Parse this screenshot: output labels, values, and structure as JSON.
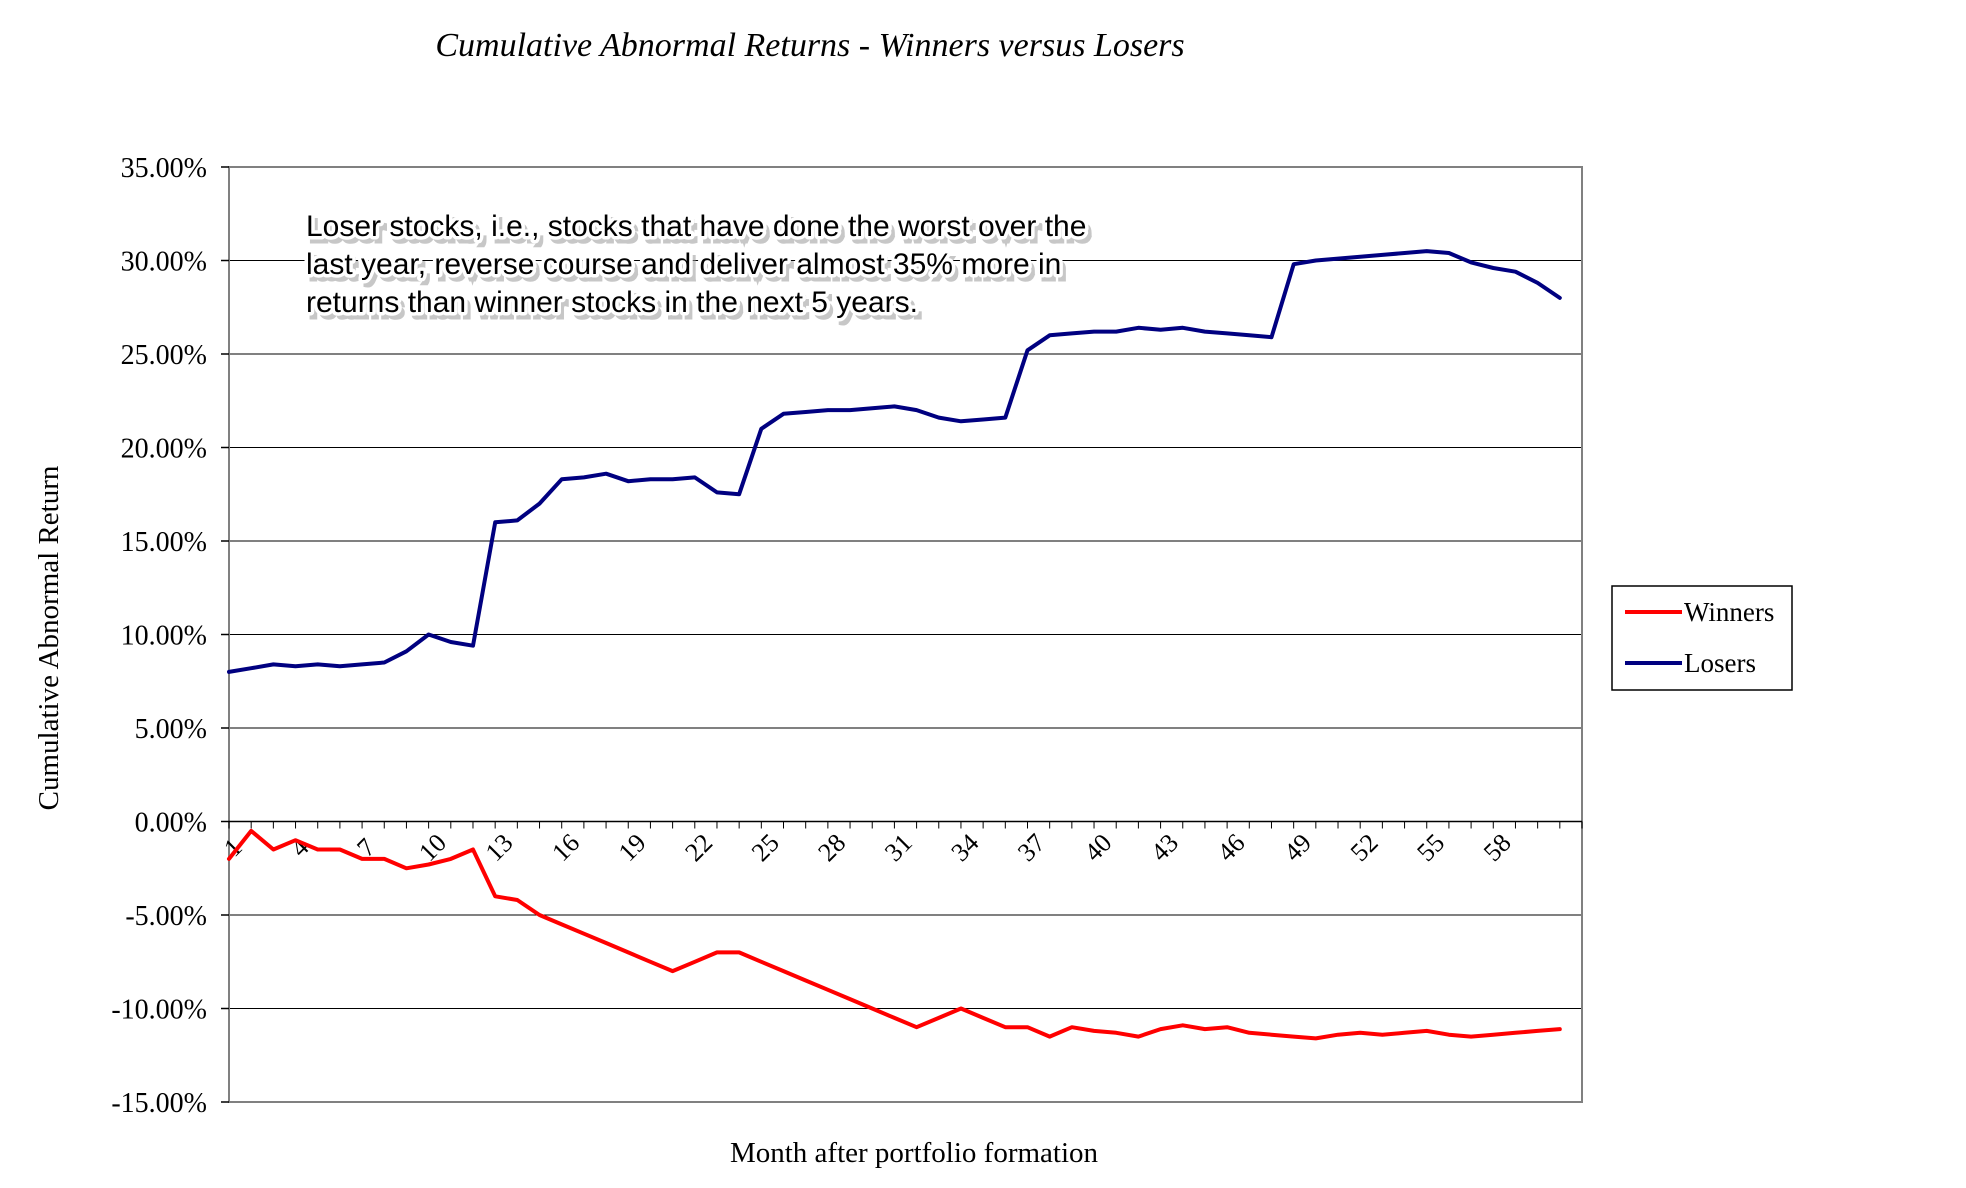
{
  "chart_data": {
    "type": "line",
    "title": "Cumulative Abnormal Returns - Winners versus Losers",
    "xlabel": "Month after portfolio formation",
    "ylabel": "Cumulative Abnormal Return",
    "ylim": [
      -15,
      35
    ],
    "yticks": [
      "35.00%",
      "30.00%",
      "25.00%",
      "20.00%",
      "15.00%",
      "10.00%",
      "5.00%",
      "0.00%",
      "-5.00%",
      "-10.00%",
      "-15.00%"
    ],
    "xticks": [
      "1",
      "4",
      "7",
      "10",
      "13",
      "16",
      "19",
      "22",
      "25",
      "28",
      "31",
      "34",
      "37",
      "40",
      "43",
      "46",
      "49",
      "52",
      "55",
      "58"
    ],
    "grid": "horizontal",
    "legend_position": "right",
    "annotation": [
      "Loser stocks, i.e., stocks that have done the worst over the",
      "last year, reverse course and deliver almost 35% more in",
      "returns than winner stocks in the next 5 years."
    ],
    "x": [
      1,
      2,
      3,
      4,
      5,
      6,
      7,
      8,
      9,
      10,
      11,
      12,
      13,
      14,
      15,
      16,
      17,
      18,
      19,
      20,
      21,
      22,
      23,
      24,
      25,
      26,
      27,
      28,
      29,
      30,
      31,
      32,
      33,
      34,
      35,
      36,
      37,
      38,
      39,
      40,
      41,
      42,
      43,
      44,
      45,
      46,
      47,
      48,
      49,
      50,
      51,
      52,
      53,
      54,
      55,
      56,
      57,
      58,
      59,
      60,
      61
    ],
    "series": [
      {
        "name": "Winners",
        "color": "#ff0000",
        "values": [
          -2.0,
          -0.5,
          -1.5,
          -1.0,
          -1.5,
          -1.5,
          -2.0,
          -2.0,
          -2.5,
          -2.3,
          -2.0,
          -1.5,
          -4.0,
          -4.2,
          -5.0,
          -5.5,
          -6.0,
          -6.5,
          -7.0,
          -7.5,
          -8.0,
          -7.5,
          -7.0,
          -7.0,
          -7.5,
          -8.0,
          -8.5,
          -9.0,
          -9.5,
          -10.0,
          -10.5,
          -11.0,
          -10.5,
          -10.0,
          -10.5,
          -11.0,
          -11.0,
          -11.5,
          -11.0,
          -11.2,
          -11.3,
          -11.5,
          -11.1,
          -10.9,
          -11.1,
          -11.0,
          -11.3,
          -11.4,
          -11.5,
          -11.6,
          -11.4,
          -11.3,
          -11.4,
          -11.3,
          -11.2,
          -11.4,
          -11.5,
          -11.4,
          -11.3,
          -11.2,
          -11.1
        ]
      },
      {
        "name": "Losers",
        "color": "#000080",
        "values": [
          8.0,
          8.2,
          8.4,
          8.3,
          8.4,
          8.3,
          8.4,
          8.5,
          9.1,
          10.0,
          9.6,
          9.4,
          16.0,
          16.1,
          17.0,
          18.3,
          18.4,
          18.6,
          18.2,
          18.3,
          18.3,
          18.4,
          17.6,
          17.5,
          21.0,
          21.8,
          21.9,
          22.0,
          22.0,
          22.1,
          22.2,
          22.0,
          21.6,
          21.4,
          21.5,
          21.6,
          25.2,
          26.0,
          26.1,
          26.2,
          26.2,
          26.4,
          26.3,
          26.4,
          26.2,
          26.1,
          26.0,
          25.9,
          29.8,
          30.0,
          30.1,
          30.2,
          30.3,
          30.4,
          30.5,
          30.4,
          29.9,
          29.6,
          29.4,
          28.8,
          28.0
        ]
      }
    ]
  }
}
